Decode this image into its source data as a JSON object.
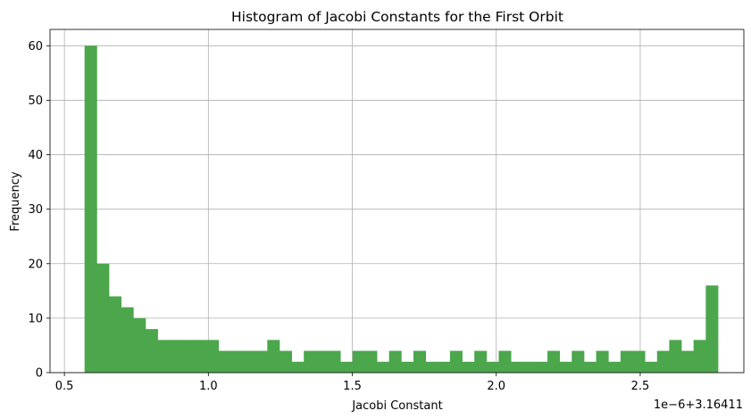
{
  "chart_data": {
    "type": "bar",
    "title": "Histogram of Jacobi Constants for the First Orbit",
    "xlabel": "Jacobi Constant",
    "ylabel": "Frequency",
    "offset_text": "1e−6+3.16411",
    "xlim": [
      0.45,
      2.86
    ],
    "ylim": [
      0,
      63
    ],
    "x_ticks": [
      0.5,
      1.0,
      1.5,
      2.0,
      2.5
    ],
    "x_tick_labels": [
      "0.5",
      "1.0",
      "1.5",
      "2.0",
      "2.5"
    ],
    "y_ticks": [
      0,
      10,
      20,
      30,
      40,
      50,
      60
    ],
    "y_tick_labels": [
      "0",
      "10",
      "20",
      "30",
      "40",
      "50",
      "60"
    ],
    "grid": true,
    "bar_color": "#4ca64c",
    "bin_start": 0.57,
    "bin_end": 2.77,
    "values": [
      60,
      20,
      14,
      12,
      10,
      8,
      6,
      6,
      6,
      6,
      6,
      4,
      4,
      4,
      4,
      6,
      4,
      2,
      4,
      4,
      4,
      2,
      4,
      4,
      2,
      4,
      2,
      4,
      2,
      2,
      4,
      2,
      4,
      2,
      4,
      2,
      2,
      2,
      4,
      2,
      4,
      2,
      4,
      2,
      4,
      4,
      2,
      4,
      6,
      4,
      6,
      16
    ]
  }
}
